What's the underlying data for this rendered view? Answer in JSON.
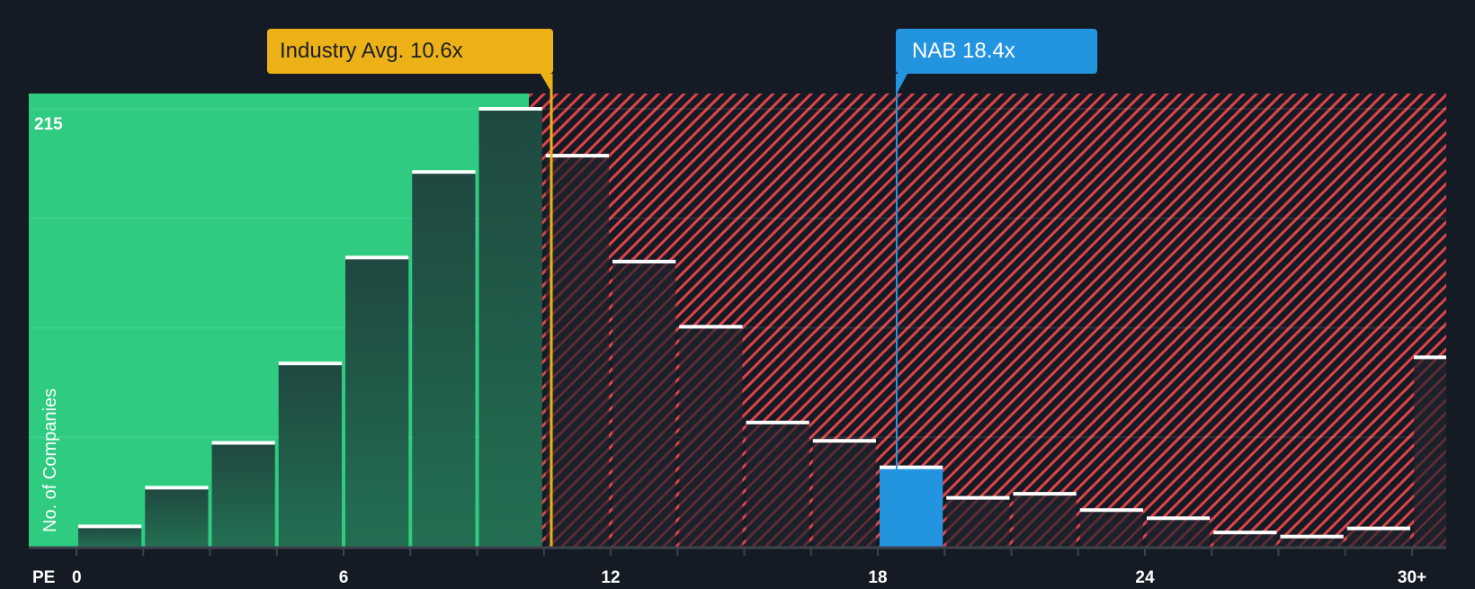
{
  "chart_data": {
    "type": "bar",
    "title": "",
    "xlabel": "PE",
    "ylabel": "No. of Companies",
    "x_tick_labels": [
      "0",
      "6",
      "12",
      "18",
      "24",
      "30+"
    ],
    "x_tick_values": [
      0,
      6,
      12,
      18,
      24,
      30
    ],
    "y_max_label": "215",
    "ylim": [
      0,
      215
    ],
    "bin_width": 1.5,
    "bins": [
      {
        "start": 0.0,
        "value": 10
      },
      {
        "start": 1.5,
        "value": 29
      },
      {
        "start": 3.0,
        "value": 51
      },
      {
        "start": 4.5,
        "value": 90
      },
      {
        "start": 6.0,
        "value": 142
      },
      {
        "start": 7.5,
        "value": 184
      },
      {
        "start": 9.0,
        "value": 215
      },
      {
        "start": 10.5,
        "value": 192
      },
      {
        "start": 12.0,
        "value": 140
      },
      {
        "start": 13.5,
        "value": 108
      },
      {
        "start": 15.0,
        "value": 61
      },
      {
        "start": 16.5,
        "value": 52
      },
      {
        "start": 18.0,
        "value": 39,
        "highlight": true
      },
      {
        "start": 19.5,
        "value": 24
      },
      {
        "start": 21.0,
        "value": 26
      },
      {
        "start": 22.5,
        "value": 18
      },
      {
        "start": 24.0,
        "value": 14
      },
      {
        "start": 25.5,
        "value": 7
      },
      {
        "start": 27.0,
        "value": 5
      },
      {
        "start": 28.5,
        "value": 9
      },
      {
        "start": 30.0,
        "value": 93
      }
    ],
    "annotations": [
      {
        "label": "Industry Avg. 10.6x",
        "x": 10.6,
        "color": "#edb118"
      },
      {
        "label": "NAB 18.4x",
        "x": 18.4,
        "color": "#2394e0"
      }
    ],
    "regions": [
      {
        "name": "undervalued",
        "from": -1.0,
        "to": 10.1,
        "color": "#2ecb80"
      },
      {
        "name": "overvalued",
        "from": 10.1,
        "to": 31.0,
        "color": "#e0434a",
        "pattern": "diagonal-hatch"
      }
    ],
    "grid": true,
    "legend": null
  },
  "labels": {
    "industry_badge": "Industry Avg. 10.6x",
    "company_badge": "NAB 18.4x",
    "y_axis_title": "No. of Companies",
    "y_max": "215",
    "x_axis_title": "PE"
  },
  "colors": {
    "background": "#151b24",
    "undervalued_green": "#2ecb80",
    "bar_dark_green": "#1f4a40",
    "hatch_red": "#e0434a",
    "industry_yellow": "#edb118",
    "company_blue": "#2394e0",
    "bar_cap": "#ffffff",
    "axis": "#3d434c"
  }
}
